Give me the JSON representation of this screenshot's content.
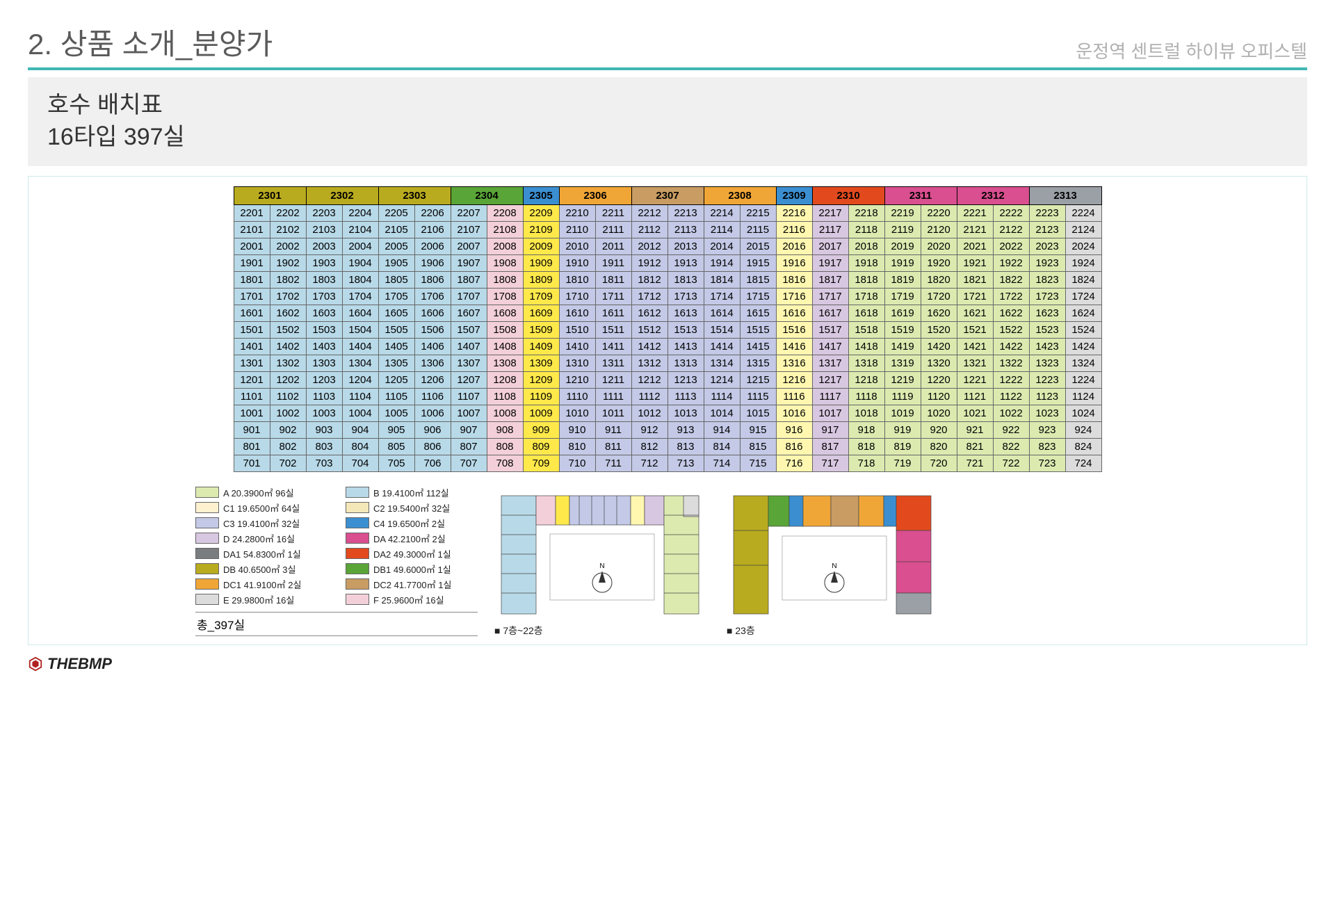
{
  "header": {
    "main_title": "2. 상품 소개_분양가",
    "brand": "운정역 센트럴 하이뷰 오피스텔",
    "sub_line1": "호수 배치표",
    "sub_line2": "16타입 397실"
  },
  "colors": {
    "lightBlue": "#b8d9e8",
    "pinkLight": "#f3d0d9",
    "yellowBright": "#ffe94a",
    "blueLav": "#c3c9e6",
    "yellowPale": "#fff7b0",
    "lavender": "#d8c7e0",
    "greenPale": "#dceab0",
    "greyLight": "#dcdcdc",
    "olive": "#b9ab1f",
    "green": "#5aa537",
    "blueStrong": "#3b8fd1",
    "orange": "#f0a637",
    "tan": "#c89c63",
    "redOrange": "#e24a1e",
    "magenta": "#d94f8f",
    "greyMid": "#9aa0a6",
    "creamC1": "#fdf1d0",
    "creamC2": "#f5e8b8",
    "darkGrey": "#7a7d80",
    "white": "#ffffff"
  },
  "table": {
    "headers": [
      {
        "label": "2301",
        "span": 2,
        "colorKey": "olive"
      },
      {
        "label": "2302",
        "span": 2,
        "colorKey": "olive"
      },
      {
        "label": "2303",
        "span": 2,
        "colorKey": "olive"
      },
      {
        "label": "2304",
        "span": 2,
        "colorKey": "green"
      },
      {
        "label": "2305",
        "span": 1,
        "colorKey": "blueStrong"
      },
      {
        "label": "2306",
        "span": 2,
        "colorKey": "orange"
      },
      {
        "label": "2307",
        "span": 2,
        "colorKey": "tan"
      },
      {
        "label": "2308",
        "span": 2,
        "colorKey": "orange"
      },
      {
        "label": "2309",
        "span": 1,
        "colorKey": "blueStrong"
      },
      {
        "label": "2310",
        "span": 2,
        "colorKey": "redOrange"
      },
      {
        "label": "2311",
        "span": 2,
        "colorKey": "magenta"
      },
      {
        "label": "2312",
        "span": 2,
        "colorKey": "magenta"
      },
      {
        "label": "2313",
        "span": 2,
        "colorKey": "greyMid"
      }
    ],
    "floor_start": 22,
    "floor_end": 7,
    "columns": 24,
    "column_colors": [
      "lightBlue",
      "lightBlue",
      "lightBlue",
      "lightBlue",
      "lightBlue",
      "lightBlue",
      "lightBlue",
      "pinkLight",
      "yellowBright",
      "blueLav",
      "blueLav",
      "blueLav",
      "blueLav",
      "blueLav",
      "blueLav",
      "yellowPale",
      "lavender",
      "greenPale",
      "greenPale",
      "greenPale",
      "greenPale",
      "greenPale",
      "greenPale",
      "greyLight"
    ]
  },
  "legend": {
    "rows": [
      [
        {
          "code": "A",
          "colorKey": "greenPale",
          "area": "20.3900㎡",
          "count": "96실"
        },
        {
          "code": "B",
          "colorKey": "lightBlue",
          "area": "19.4100㎡",
          "count": "112실"
        }
      ],
      [
        {
          "code": "C1",
          "colorKey": "creamC1",
          "area": "19.6500㎡",
          "count": "64실"
        },
        {
          "code": "C2",
          "colorKey": "creamC2",
          "area": "19.5400㎡",
          "count": "32실"
        }
      ],
      [
        {
          "code": "C3",
          "colorKey": "blueLav",
          "area": "19.4100㎡",
          "count": "32실"
        },
        {
          "code": "C4",
          "colorKey": "blueStrong",
          "area": "19.6500㎡",
          "count": "2실"
        }
      ],
      [
        {
          "code": "D",
          "colorKey": "lavender",
          "area": "24.2800㎡",
          "count": "16실"
        },
        {
          "code": "DA",
          "colorKey": "magenta",
          "area": "42.2100㎡",
          "count": "2실"
        }
      ],
      [
        {
          "code": "DA1",
          "colorKey": "darkGrey",
          "area": "54.8300㎡",
          "count": "1실"
        },
        {
          "code": "DA2",
          "colorKey": "redOrange",
          "area": "49.3000㎡",
          "count": "1실"
        }
      ],
      [
        {
          "code": "DB",
          "colorKey": "olive",
          "area": "40.6500㎡",
          "count": "3실"
        },
        {
          "code": "DB1",
          "colorKey": "green",
          "area": "49.6000㎡",
          "count": "1실"
        }
      ],
      [
        {
          "code": "DC1",
          "colorKey": "orange",
          "area": "41.9100㎡",
          "count": "2실"
        },
        {
          "code": "DC2",
          "colorKey": "tan",
          "area": "41.7700㎡",
          "count": "1실"
        }
      ],
      [
        {
          "code": "E",
          "colorKey": "greyLight",
          "area": "29.9800㎡",
          "count": "16실"
        },
        {
          "code": "F",
          "colorKey": "pinkLight",
          "area": "25.9600㎡",
          "count": "16실"
        }
      ]
    ],
    "total": "총_397실"
  },
  "floorplans": {
    "left_caption": "■ 7층~22층",
    "right_caption": "■ 23층",
    "compass_label": "N"
  },
  "footer": {
    "logo_text": "THEBMP"
  }
}
